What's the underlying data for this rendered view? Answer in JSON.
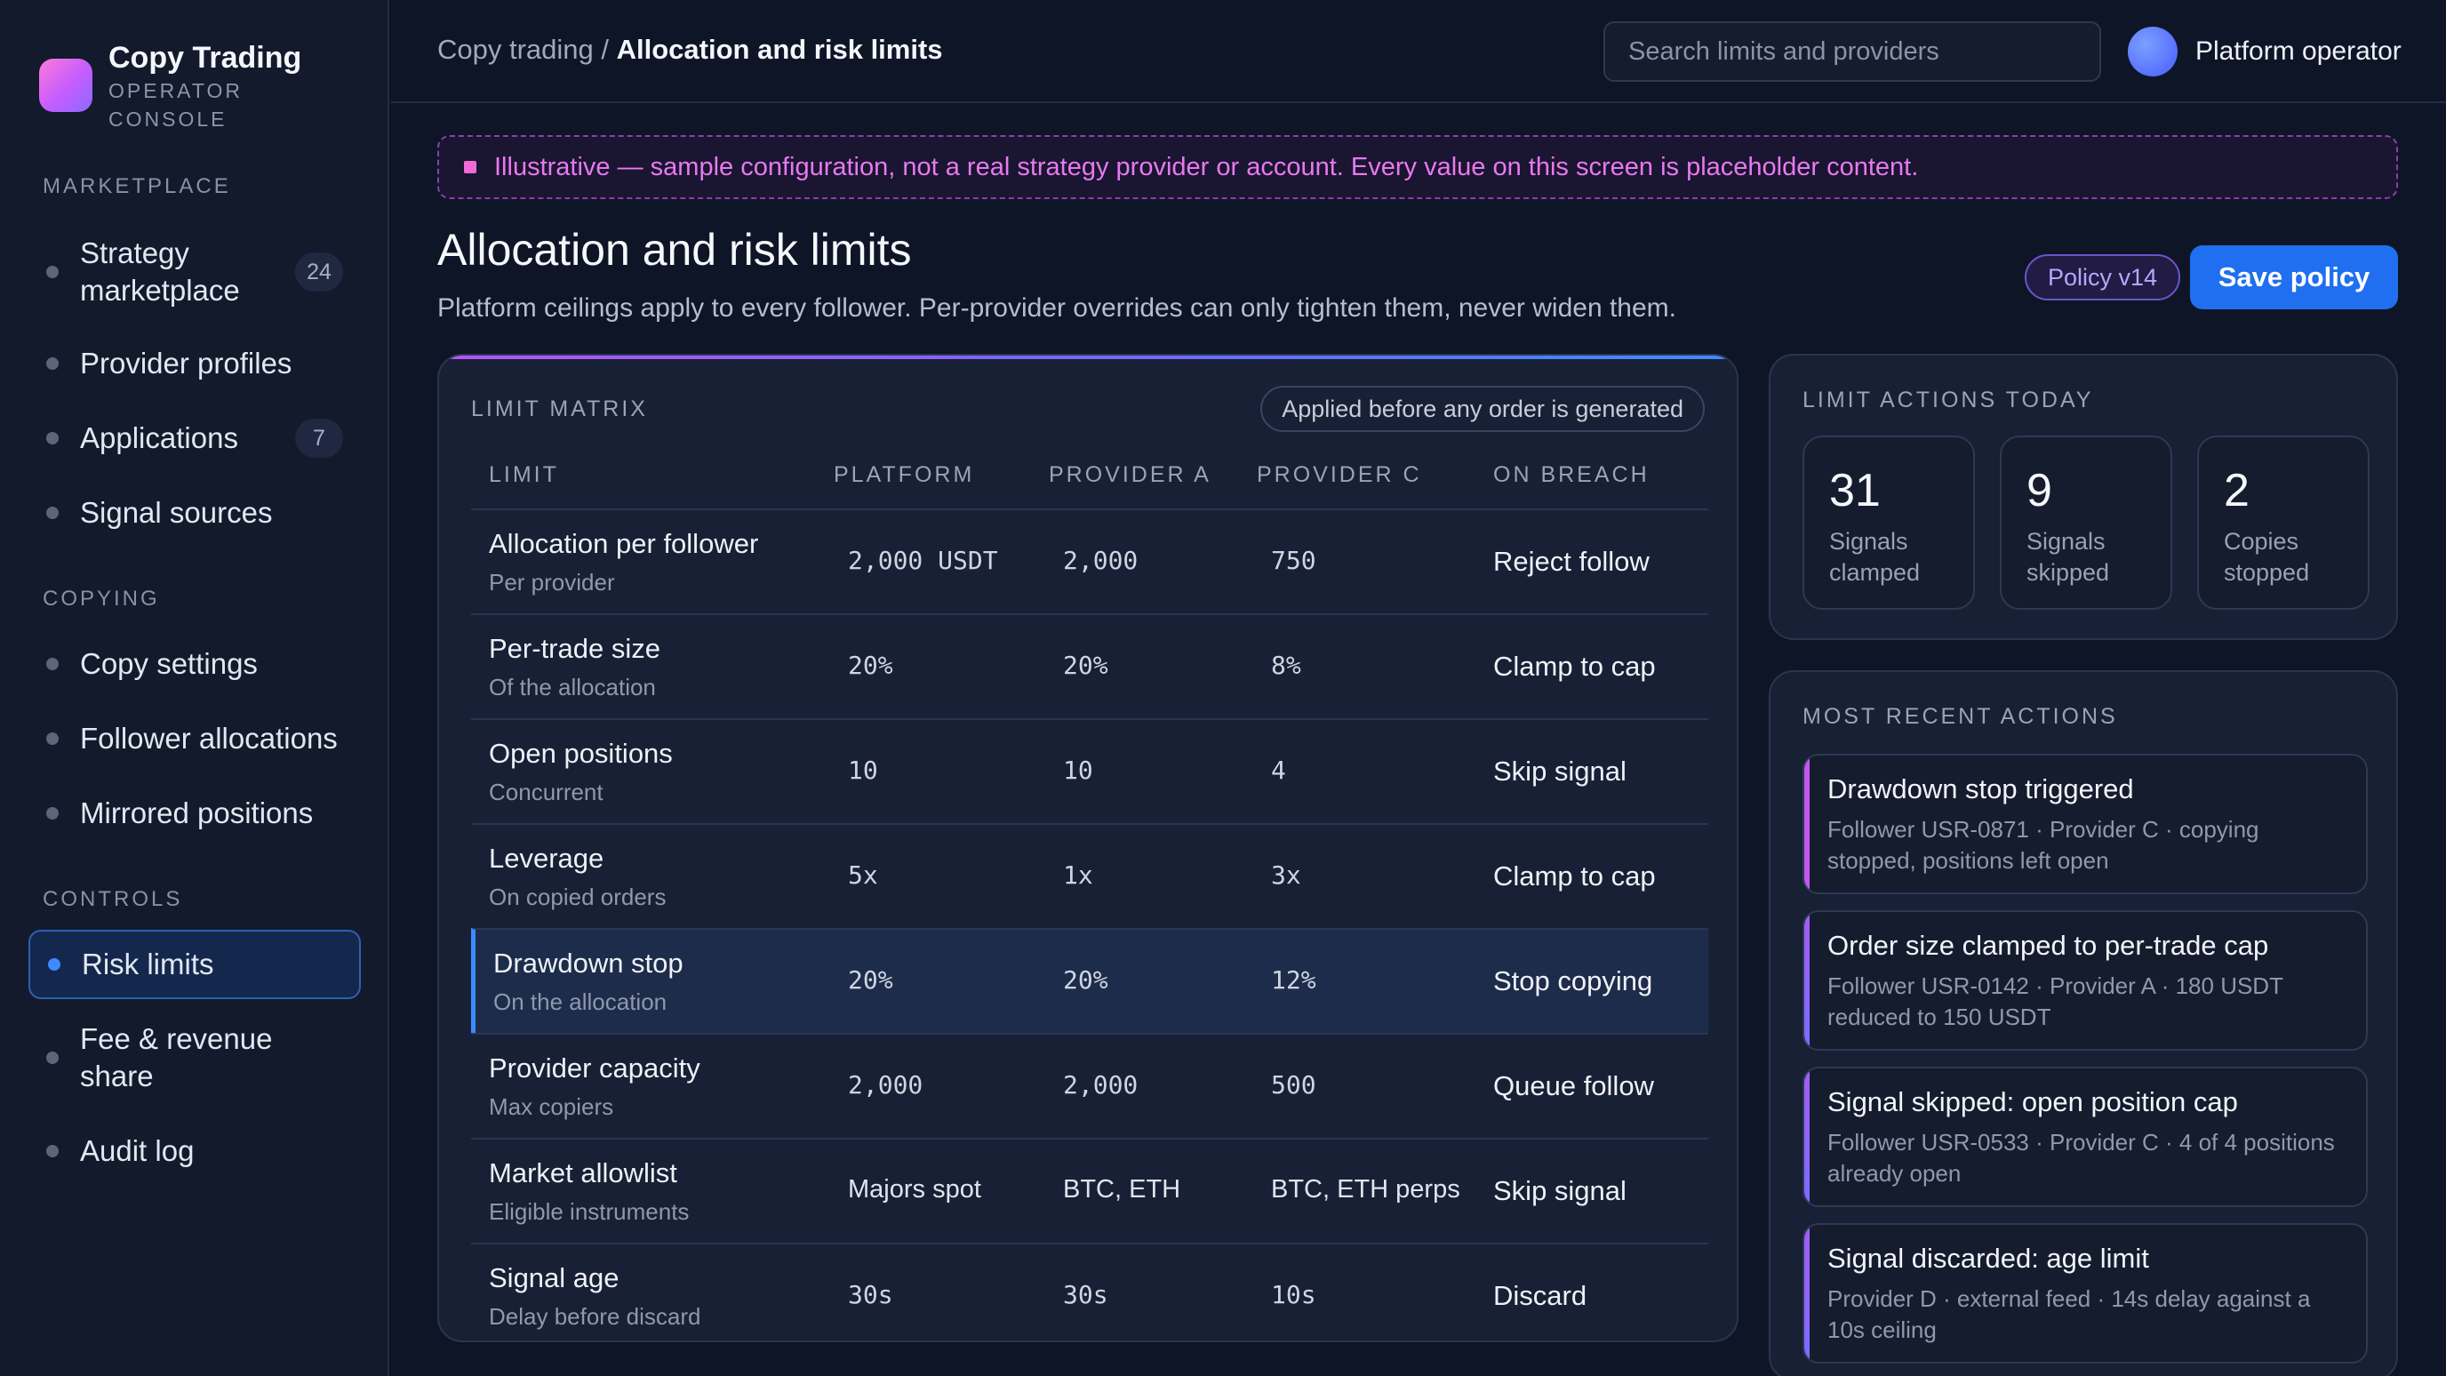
{
  "brand": {
    "title": "Copy Trading",
    "subtitle": "OPERATOR CONSOLE"
  },
  "sidebar": {
    "sections": [
      {
        "label": "MARKETPLACE"
      },
      {
        "label": "COPYING"
      },
      {
        "label": "CONTROLS"
      }
    ],
    "items": [
      {
        "label": "Strategy marketplace",
        "badge": "24"
      },
      {
        "label": "Provider profiles"
      },
      {
        "label": "Applications",
        "badge": "7"
      },
      {
        "label": "Signal sources"
      },
      {
        "label": "Copy settings"
      },
      {
        "label": "Follower allocations"
      },
      {
        "label": "Mirrored positions"
      },
      {
        "label": "Risk limits",
        "active": true
      },
      {
        "label": "Fee & revenue share"
      },
      {
        "label": "Audit log"
      }
    ]
  },
  "topbar": {
    "breadcrumb_parent": "Copy trading /",
    "breadcrumb_current": "Allocation and risk limits",
    "search_placeholder": "Search limits and providers",
    "user_name": "Platform operator"
  },
  "banner": {
    "text": "Illustrative — sample configuration, not a real strategy provider or account. Every value on this screen is placeholder content."
  },
  "header": {
    "title": "Allocation and risk limits",
    "subtitle": "Platform ceilings apply to every follower. Per-provider overrides can only tighten them, never widen them.",
    "policy_badge": "Policy v14",
    "save_label": "Save policy"
  },
  "matrix": {
    "label": "LIMIT MATRIX",
    "note": "Applied before any order is generated",
    "columns": [
      "LIMIT",
      "PLATFORM",
      "PROVIDER A",
      "PROVIDER C",
      "ON BREACH"
    ],
    "rows": [
      {
        "name": "Allocation per follower",
        "desc": "Per provider",
        "platform": "2,000 USDT",
        "provider_a": "2,000",
        "provider_c": "750",
        "on_breach": "Reject follow",
        "mono": true
      },
      {
        "name": "Per-trade size",
        "desc": "Of the allocation",
        "platform": "20%",
        "provider_a": "20%",
        "provider_c": "8%",
        "on_breach": "Clamp to cap",
        "mono": true
      },
      {
        "name": "Open positions",
        "desc": "Concurrent",
        "platform": "10",
        "provider_a": "10",
        "provider_c": "4",
        "on_breach": "Skip signal",
        "mono": true
      },
      {
        "name": "Leverage",
        "desc": "On copied orders",
        "platform": "5x",
        "provider_a": "1x",
        "provider_c": "3x",
        "on_breach": "Clamp to cap",
        "mono": true
      },
      {
        "name": "Drawdown stop",
        "desc": "On the allocation",
        "platform": "20%",
        "provider_a": "20%",
        "provider_c": "12%",
        "on_breach": "Stop copying",
        "mono": true,
        "highlight": true
      },
      {
        "name": "Provider capacity",
        "desc": "Max copiers",
        "platform": "2,000",
        "provider_a": "2,000",
        "provider_c": "500",
        "on_breach": "Queue follow",
        "mono": true
      },
      {
        "name": "Market allowlist",
        "desc": "Eligible instruments",
        "platform": "Majors spot",
        "provider_a": "BTC, ETH",
        "provider_c": "BTC, ETH perps",
        "on_breach": "Skip signal",
        "mono": false
      },
      {
        "name": "Signal age",
        "desc": "Delay before discard",
        "platform": "30s",
        "provider_a": "30s",
        "provider_c": "10s",
        "on_breach": "Discard",
        "mono": true
      }
    ]
  },
  "today": {
    "label": "LIMIT ACTIONS TODAY",
    "stats": [
      {
        "value": "31",
        "label": "Signals clamped"
      },
      {
        "value": "9",
        "label": "Signals skipped"
      },
      {
        "value": "2",
        "label": "Copies stopped"
      }
    ]
  },
  "recent": {
    "label": "MOST RECENT ACTIONS",
    "items": [
      {
        "title": "Drawdown stop triggered",
        "desc": "Follower USR-0871 · Provider C · copying stopped, positions left open"
      },
      {
        "title": "Order size clamped to per-trade cap",
        "desc": "Follower USR-0142 · Provider A · 180 USDT reduced to 150 USDT"
      },
      {
        "title": "Signal skipped: open position cap",
        "desc": "Follower USR-0533 · Provider C · 4 of 4 positions already open"
      },
      {
        "title": "Signal discarded: age limit",
        "desc": "Provider D · external feed · 14s delay against a 10s ceiling"
      }
    ]
  },
  "colors": {
    "accent": "#1f6ff0",
    "banner": "#e879f0",
    "policy": "#b6a7ff"
  }
}
